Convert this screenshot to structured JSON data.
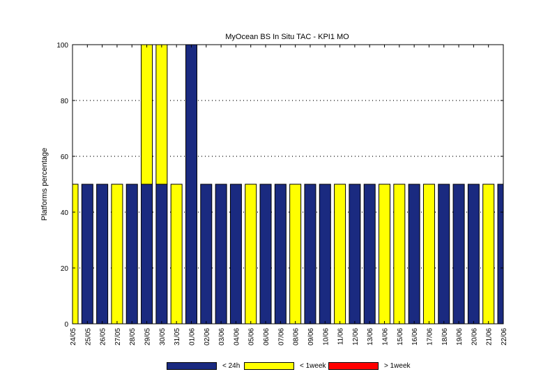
{
  "chart_data": {
    "type": "bar",
    "stacked": true,
    "title": "MyOcean  BS In Situ TAC - KPI1  MO",
    "xlabel": "",
    "ylabel": "Platforms percentage",
    "ylim": [
      0,
      100
    ],
    "yticks": [
      0,
      20,
      40,
      60,
      80,
      100
    ],
    "grid": "dotted horizontal",
    "legend_position": "bottom",
    "categories": [
      "24/05",
      "25/05",
      "26/05",
      "27/05",
      "28/05",
      "29/05",
      "30/05",
      "31/05",
      "01/06",
      "02/06",
      "03/06",
      "04/06",
      "05/06",
      "06/06",
      "07/06",
      "08/06",
      "09/06",
      "10/06",
      "11/06",
      "12/06",
      "13/06",
      "14/06",
      "15/06",
      "16/06",
      "17/06",
      "18/06",
      "19/06",
      "20/06",
      "21/06",
      "22/06"
    ],
    "series": [
      {
        "name": "< 24h",
        "color": "#1a2a80",
        "values": [
          0,
          50,
          50,
          0,
          50,
          50,
          50,
          0,
          100,
          50,
          50,
          50,
          0,
          50,
          50,
          0,
          50,
          50,
          0,
          50,
          50,
          0,
          0,
          50,
          0,
          50,
          50,
          50,
          0,
          50
        ]
      },
      {
        "name": "< 1week",
        "color": "#ffff00",
        "values": [
          50,
          0,
          0,
          50,
          0,
          50,
          50,
          50,
          0,
          0,
          0,
          0,
          50,
          0,
          0,
          50,
          0,
          0,
          50,
          0,
          0,
          50,
          50,
          0,
          50,
          0,
          0,
          0,
          50,
          0
        ]
      },
      {
        "name": "> 1week",
        "color": "#ff0000",
        "values": [
          0,
          0,
          0,
          0,
          0,
          0,
          0,
          0,
          0,
          0,
          0,
          0,
          0,
          0,
          0,
          0,
          0,
          0,
          0,
          0,
          0,
          0,
          0,
          0,
          0,
          0,
          0,
          0,
          0,
          0
        ]
      }
    ]
  }
}
